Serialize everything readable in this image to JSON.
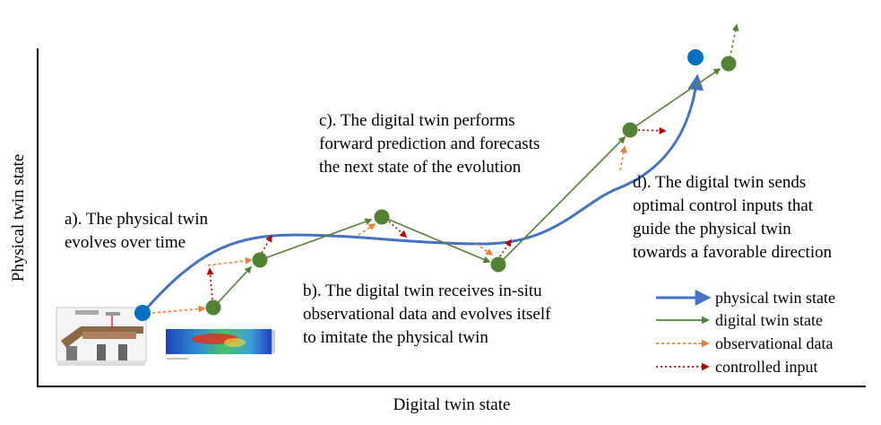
{
  "axes": {
    "x_title": "Digital twin state",
    "y_title": "Physical twin state"
  },
  "annotations": {
    "a": [
      "a). The physical twin",
      "evolves over time"
    ],
    "b": [
      "b). The digital twin receives in-situ",
      "observational data and evolves itself",
      "to imitate the physical twin"
    ],
    "c": [
      "c). The digital twin performs",
      "forward prediction and forecasts",
      "the next state of the evolution"
    ],
    "d": [
      "d). The digital twin sends",
      "optimal control inputs that",
      "guide the physical twin",
      "towards a favorable direction"
    ]
  },
  "legend": [
    {
      "key": "physical",
      "label": "physical twin state",
      "style": "solid",
      "color": "#4472C4"
    },
    {
      "key": "digital",
      "label": "digital twin state",
      "style": "solid",
      "color": "#548235"
    },
    {
      "key": "observational",
      "label": "observational data",
      "style": "dotted",
      "color": "#ED7D31"
    },
    {
      "key": "control",
      "label": "controlled input",
      "style": "dotted",
      "color": "#C00000"
    }
  ],
  "colors": {
    "physical": "#4472C4",
    "physical_node": "#0070C0",
    "digital": "#548235",
    "digital_node": "#548235",
    "observational": "#ED7D31",
    "control": "#C00000"
  },
  "icons": [
    "printer-apparatus-icon",
    "thermal-heatmap-icon"
  ]
}
